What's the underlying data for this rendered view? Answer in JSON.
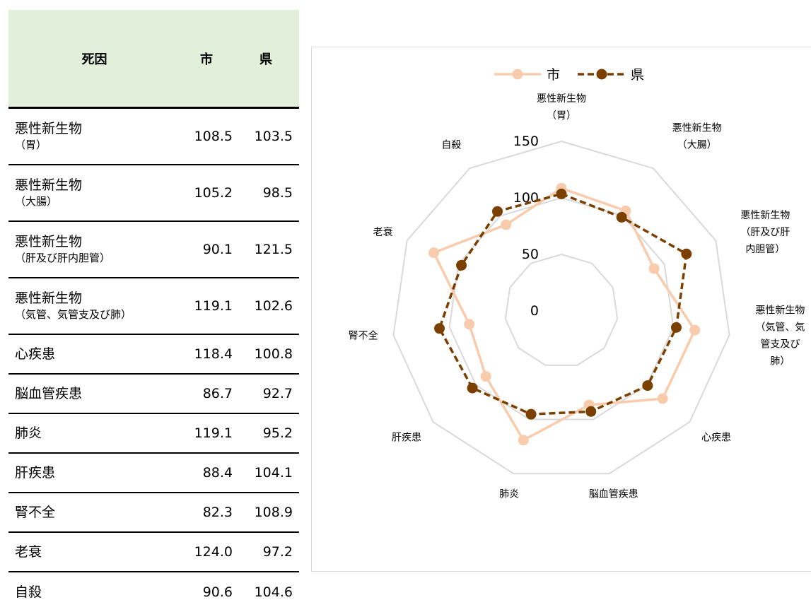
{
  "table": {
    "headers": {
      "name": "死因",
      "city": "市",
      "pref": "県"
    },
    "rows": [
      {
        "line1": "悪性新生物",
        "line2": "（胃）",
        "city": "108.5",
        "pref": "103.5"
      },
      {
        "line1": "悪性新生物",
        "line2": "（大腸）",
        "city": "105.2",
        "pref": "98.5"
      },
      {
        "line1": "悪性新生物",
        "line2": "（肝及び肝内胆管）",
        "city": "90.1",
        "pref": "121.5"
      },
      {
        "line1": "悪性新生物",
        "line2": "（気管、気管支及び肺）",
        "city": "119.1",
        "pref": "102.6"
      },
      {
        "line1": "心疾患",
        "line2": "",
        "city": "118.4",
        "pref": "100.8"
      },
      {
        "line1": "脳血管疾患",
        "line2": "",
        "city": "86.7",
        "pref": "92.7"
      },
      {
        "line1": "肺炎",
        "line2": "",
        "city": "119.1",
        "pref": "95.2"
      },
      {
        "line1": "肝疾患",
        "line2": "",
        "city": "88.4",
        "pref": "104.1"
      },
      {
        "line1": "腎不全",
        "line2": "",
        "city": "82.3",
        "pref": "108.9"
      },
      {
        "line1": "老衰",
        "line2": "",
        "city": "124.0",
        "pref": "97.2"
      },
      {
        "line1": "自殺",
        "line2": "",
        "city": "90.6",
        "pref": "104.6"
      }
    ]
  },
  "chart_data": {
    "type": "radar",
    "categories": [
      [
        "悪性新生物",
        "（胃）"
      ],
      [
        "悪性新生物",
        "（大腸）"
      ],
      [
        "悪性新生物",
        "（肝及び肝",
        "内胆管）"
      ],
      [
        "悪性新生物",
        "（気管、気",
        "管支及び",
        "肺）"
      ],
      [
        "心疾患"
      ],
      [
        "脳血管疾患"
      ],
      [
        "肺炎"
      ],
      [
        "肝疾患"
      ],
      [
        "腎不全"
      ],
      [
        "老衰"
      ],
      [
        "自殺"
      ]
    ],
    "series": [
      {
        "name": "市",
        "values": [
          108.5,
          105.2,
          90.1,
          119.1,
          118.4,
          86.7,
          119.1,
          88.4,
          82.3,
          124.0,
          90.6
        ],
        "color": "#f8cbad",
        "style": "solid"
      },
      {
        "name": "県",
        "values": [
          103.5,
          98.5,
          121.5,
          102.6,
          100.8,
          92.7,
          95.2,
          104.1,
          108.9,
          97.2,
          104.6
        ],
        "color": "#7b3f00",
        "style": "dashed"
      }
    ],
    "ticks": [
      "0",
      "50",
      "100",
      "150"
    ],
    "rlim": [
      0,
      150
    ],
    "grid": true,
    "legend": "top"
  }
}
